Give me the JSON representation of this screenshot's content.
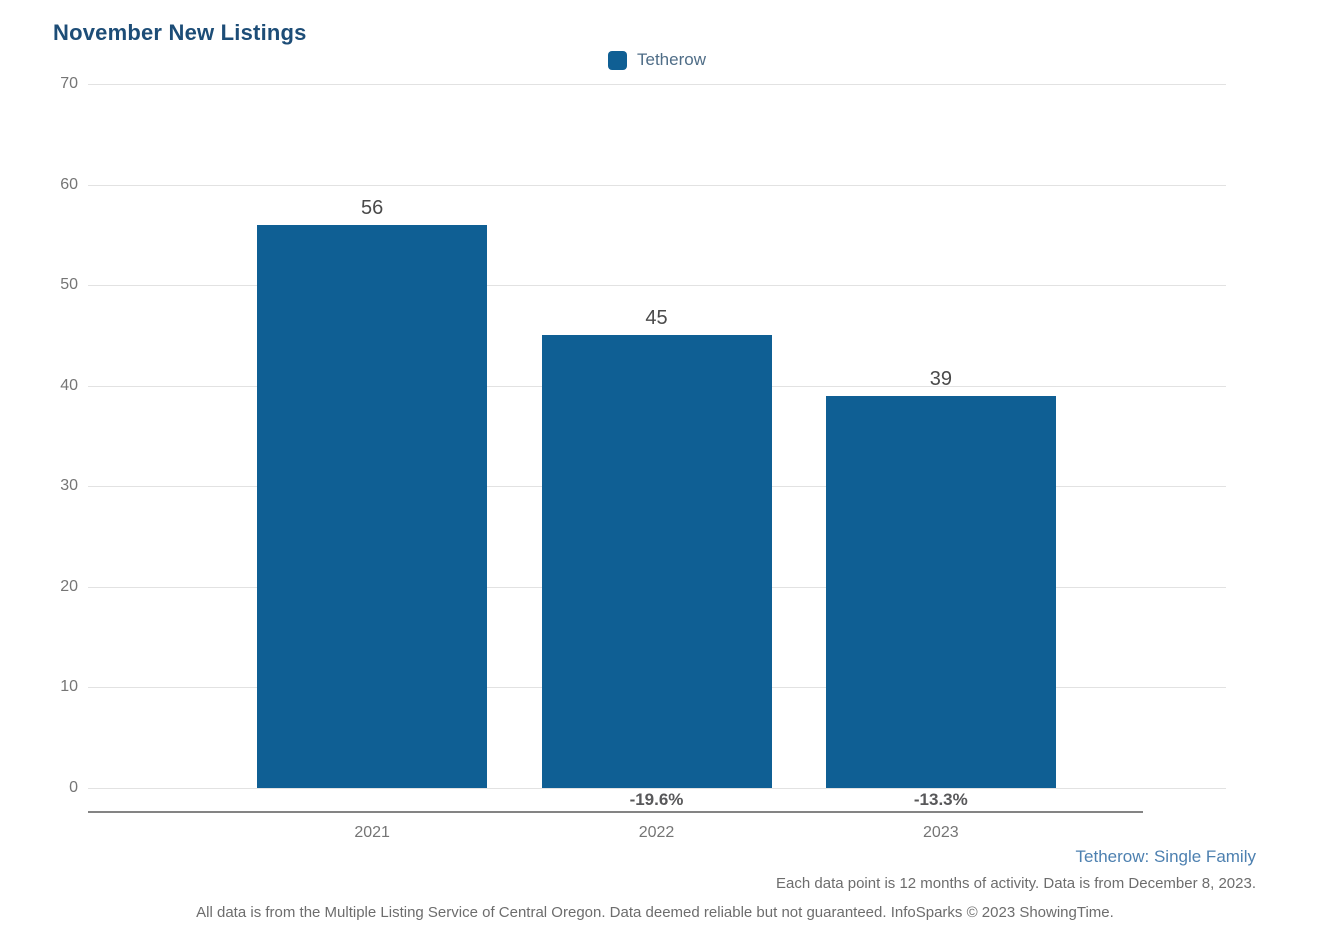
{
  "title": "November New Listings",
  "legend": {
    "swatch_icon": "series-color-swatch",
    "label": "Tetherow"
  },
  "chart_data": {
    "type": "bar",
    "title": "November New Listings",
    "series_name": "Tetherow",
    "categories": [
      "2021",
      "2022",
      "2023"
    ],
    "values": [
      56,
      45,
      39
    ],
    "value_labels": [
      "56",
      "45",
      "39"
    ],
    "pct_change_labels": [
      "",
      "-19.6%",
      "-13.3%"
    ],
    "xlabel": "",
    "ylabel": "",
    "ylim": [
      0,
      70
    ],
    "yticks": [
      0,
      10,
      20,
      30,
      40,
      50,
      60,
      70
    ],
    "grid": "horizontal",
    "legend_position": "top-center",
    "bar_color": "#0f5f94"
  },
  "footnotes": {
    "series_detail": "Tetherow: Single Family",
    "data_note": "Each data point is 12 months of activity. Data is from December 8, 2023.",
    "source": "All data is from the Multiple Listing Service of Central Oregon. Data deemed reliable but not guaranteed. InfoSparks © 2023 ShowingTime."
  },
  "colors": {
    "bar": "#0f5f94",
    "title": "#1d4d77",
    "legend_label": "#4f6d87",
    "axis_tick": "#757575",
    "gridline": "#e2e2e2",
    "axis_line": "#848484",
    "value_label": "#4a4a4a",
    "pct_label": "#58585a",
    "footnote_blue": "#4d80b0",
    "footnote_gray": "#6d6d6d"
  }
}
